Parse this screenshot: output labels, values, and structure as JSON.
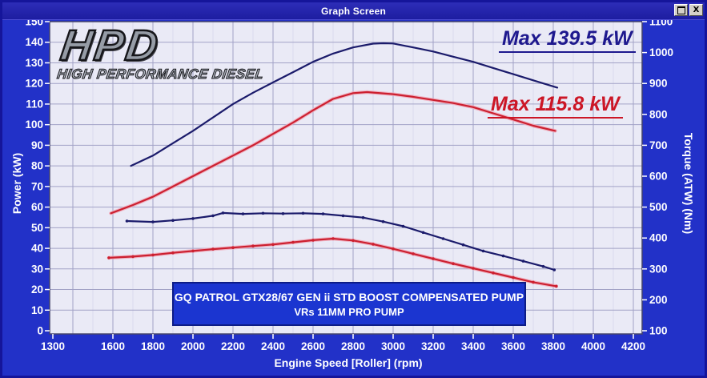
{
  "window": {
    "title": "Graph Screen",
    "restore_button": "restore",
    "close_button": "X"
  },
  "logo": {
    "main": "HPD",
    "sub": "HIGH PERFORMANCE DIESEL"
  },
  "annotations": {
    "max_blue": "Max 139.5 kW",
    "max_red": "Max 115.8 kW"
  },
  "info_box": {
    "line1": "GQ PATROL GTX28/67 GEN ii STD BOOST COMPENSATED PUMP",
    "line2": "VRs 11MM PRO PUMP"
  },
  "colors": {
    "chart_bg": "#2231c8",
    "plot_bg": "#eaeaf6",
    "grid_major": "#a2a2c6",
    "grid_minor": "#d9d9ee",
    "plot_border": "#44446a",
    "tick_text": "#ffffff",
    "blue_series": "#1b1b6b",
    "red_series": "#cc2030",
    "red_halo": "#f0a8b8"
  },
  "chart_data": {
    "type": "line",
    "xlabel": "Engine Speed [Roller] (rpm)",
    "ylabel_left": "Power (kW)",
    "ylabel_right": "Torque (ATW) (Nm)",
    "x_range": [
      1300,
      4230
    ],
    "power_range": [
      0,
      150
    ],
    "torque_range": [
      100,
      1100
    ],
    "x_tick_labels": [
      1300,
      1600,
      1800,
      2000,
      2200,
      2400,
      2600,
      2800,
      3000,
      3200,
      3400,
      3600,
      3800,
      4000,
      4200
    ],
    "power_ticks": [
      0,
      10,
      20,
      30,
      40,
      50,
      60,
      70,
      80,
      90,
      100,
      110,
      120,
      130,
      140,
      150
    ],
    "torque_ticks": [
      100,
      200,
      300,
      400,
      500,
      600,
      700,
      800,
      900,
      1000,
      1100
    ],
    "grid": {
      "v_major_rpm_step": 200,
      "v_minor_rpm_step": 100,
      "h_power_step": 10
    },
    "series": [
      {
        "name": "blue-power",
        "axis": "power",
        "unit": "kW",
        "color": "#1b1b6b",
        "markers": false,
        "max_value": 139.5,
        "points": [
          [
            1690,
            80
          ],
          [
            1800,
            85
          ],
          [
            1900,
            91
          ],
          [
            2000,
            97
          ],
          [
            2100,
            103.5
          ],
          [
            2200,
            110
          ],
          [
            2300,
            115.5
          ],
          [
            2400,
            120.5
          ],
          [
            2500,
            125.5
          ],
          [
            2600,
            130.5
          ],
          [
            2700,
            134.5
          ],
          [
            2800,
            137.5
          ],
          [
            2900,
            139.3
          ],
          [
            2950,
            139.5
          ],
          [
            3000,
            139.4
          ],
          [
            3100,
            137.5
          ],
          [
            3200,
            135.5
          ],
          [
            3300,
            133
          ],
          [
            3400,
            130.5
          ],
          [
            3500,
            127.5
          ],
          [
            3600,
            124.5
          ],
          [
            3700,
            121.5
          ],
          [
            3820,
            118
          ]
        ]
      },
      {
        "name": "red-power",
        "axis": "power",
        "unit": "kW",
        "color": "#cc2030",
        "halo": "#f0a8b8",
        "markers": false,
        "max_value": 115.8,
        "points": [
          [
            1590,
            57
          ],
          [
            1700,
            61
          ],
          [
            1800,
            65
          ],
          [
            1900,
            70
          ],
          [
            2000,
            75
          ],
          [
            2100,
            80
          ],
          [
            2200,
            85
          ],
          [
            2300,
            90
          ],
          [
            2400,
            95.5
          ],
          [
            2500,
            101
          ],
          [
            2600,
            107
          ],
          [
            2700,
            112.5
          ],
          [
            2800,
            115.3
          ],
          [
            2870,
            115.8
          ],
          [
            3000,
            114.8
          ],
          [
            3100,
            113.5
          ],
          [
            3200,
            112
          ],
          [
            3300,
            110.5
          ],
          [
            3400,
            108.5
          ],
          [
            3500,
            105.5
          ],
          [
            3600,
            102.5
          ],
          [
            3700,
            99.5
          ],
          [
            3810,
            97
          ]
        ]
      },
      {
        "name": "blue-torque",
        "axis": "torque",
        "unit": "Nm",
        "color": "#1b1b6b",
        "markers": true,
        "points": [
          [
            1670,
            455
          ],
          [
            1800,
            452
          ],
          [
            1900,
            457
          ],
          [
            2000,
            463
          ],
          [
            2100,
            472
          ],
          [
            2150,
            481
          ],
          [
            2250,
            478
          ],
          [
            2350,
            480
          ],
          [
            2450,
            479
          ],
          [
            2550,
            480
          ],
          [
            2650,
            478
          ],
          [
            2750,
            472
          ],
          [
            2850,
            466
          ],
          [
            2950,
            453
          ],
          [
            3050,
            438
          ],
          [
            3150,
            418
          ],
          [
            3250,
            398
          ],
          [
            3350,
            378
          ],
          [
            3450,
            358
          ],
          [
            3550,
            342
          ],
          [
            3650,
            325
          ],
          [
            3750,
            308
          ],
          [
            3805,
            297
          ]
        ]
      },
      {
        "name": "red-torque",
        "axis": "torque",
        "unit": "Nm",
        "color": "#cc2030",
        "halo": "#f0a8b8",
        "markers": true,
        "points": [
          [
            1580,
            336
          ],
          [
            1700,
            340
          ],
          [
            1800,
            345
          ],
          [
            1900,
            352
          ],
          [
            2000,
            358
          ],
          [
            2100,
            364
          ],
          [
            2200,
            369
          ],
          [
            2300,
            374
          ],
          [
            2400,
            379
          ],
          [
            2500,
            386
          ],
          [
            2600,
            393
          ],
          [
            2700,
            398
          ],
          [
            2800,
            392
          ],
          [
            2900,
            380
          ],
          [
            3000,
            365
          ],
          [
            3100,
            349
          ],
          [
            3200,
            333
          ],
          [
            3300,
            317
          ],
          [
            3400,
            302
          ],
          [
            3500,
            287
          ],
          [
            3600,
            272
          ],
          [
            3700,
            257
          ],
          [
            3815,
            244
          ]
        ]
      }
    ]
  }
}
